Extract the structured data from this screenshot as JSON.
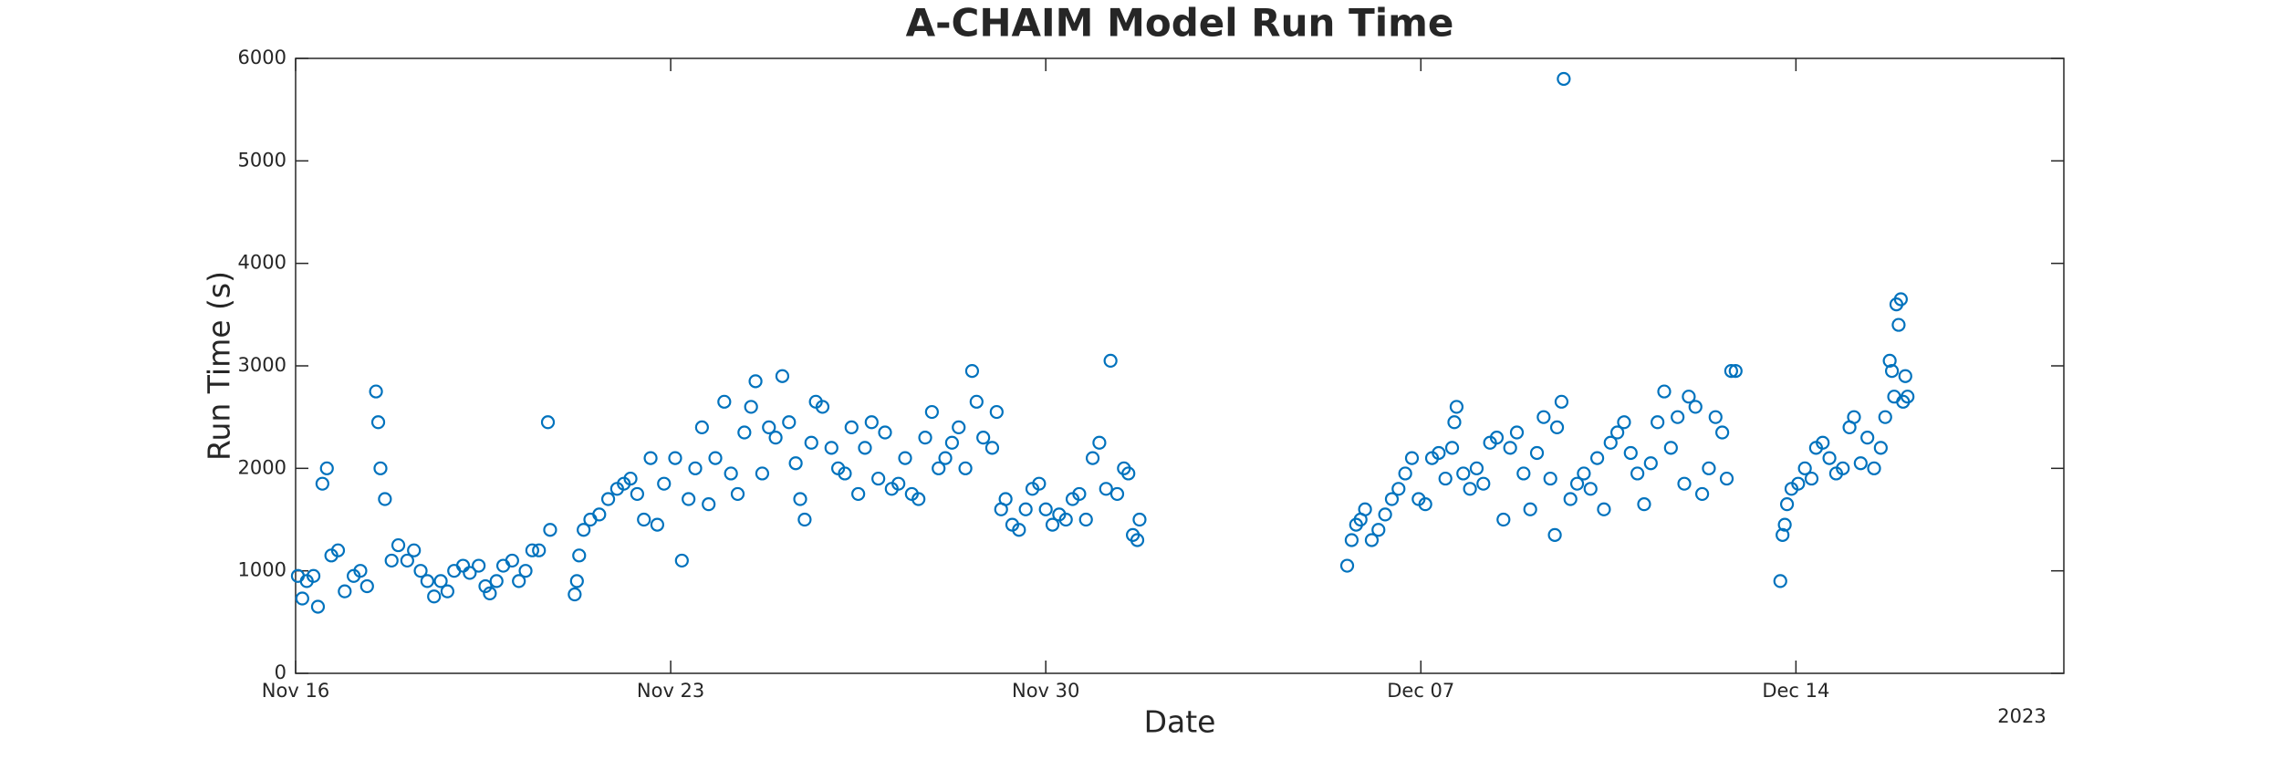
{
  "chart_data": {
    "type": "scatter",
    "title": "A-CHAIM Model Run Time",
    "xlabel": "Date",
    "ylabel": "Run Time (s)",
    "year_label": "2023",
    "color": "#0072bd",
    "xlim": [
      "2023-11-16",
      "2023-12-19"
    ],
    "xticks": [
      {
        "value": "2023-11-16",
        "label": "Nov 16"
      },
      {
        "value": "2023-11-23",
        "label": "Nov 23"
      },
      {
        "value": "2023-11-30",
        "label": "Nov 30"
      },
      {
        "value": "2023-12-07",
        "label": "Dec 07"
      },
      {
        "value": "2023-12-14",
        "label": "Dec 14"
      }
    ],
    "ylim": [
      0,
      6000
    ],
    "yticks": [
      0,
      1000,
      2000,
      3000,
      4000,
      5000,
      6000
    ],
    "grid": false,
    "x": [
      "2023-11-16T01:00",
      "2023-11-16T03:00",
      "2023-11-16T05:00",
      "2023-11-16T08:00",
      "2023-11-16T10:00",
      "2023-11-16T12:00",
      "2023-11-16T14:00",
      "2023-11-16T16:00",
      "2023-11-16T19:00",
      "2023-11-16T22:00",
      "2023-11-17T02:00",
      "2023-11-17T05:00",
      "2023-11-17T08:00",
      "2023-11-17T12:00",
      "2023-11-17T13:00",
      "2023-11-17T14:00",
      "2023-11-17T16:00",
      "2023-11-17T19:00",
      "2023-11-17T22:00",
      "2023-11-18T02:00",
      "2023-11-18T05:00",
      "2023-11-18T08:00",
      "2023-11-18T11:00",
      "2023-11-18T14:00",
      "2023-11-18T17:00",
      "2023-11-18T20:00",
      "2023-11-18T23:00",
      "2023-11-19T03:00",
      "2023-11-19T06:00",
      "2023-11-19T10:00",
      "2023-11-19T13:00",
      "2023-11-19T15:00",
      "2023-11-19T18:00",
      "2023-11-19T21:00",
      "2023-11-20T01:00",
      "2023-11-20T04:00",
      "2023-11-20T07:00",
      "2023-11-20T10:00",
      "2023-11-20T13:00",
      "2023-11-20T17:00",
      "2023-11-20T18:00",
      "2023-11-21T05:00",
      "2023-11-21T06:00",
      "2023-11-21T07:00",
      "2023-11-21T09:00",
      "2023-11-21T12:00",
      "2023-11-21T16:00",
      "2023-11-21T20:00",
      "2023-11-22T00:00",
      "2023-11-22T03:00",
      "2023-11-22T06:00",
      "2023-11-22T09:00",
      "2023-11-22T12:00",
      "2023-11-22T15:00",
      "2023-11-22T18:00",
      "2023-11-22T21:00",
      "2023-11-23T02:00",
      "2023-11-23T05:00",
      "2023-11-23T08:00",
      "2023-11-23T11:00",
      "2023-11-23T14:00",
      "2023-11-23T17:00",
      "2023-11-23T20:00",
      "2023-11-24T00:00",
      "2023-11-24T03:00",
      "2023-11-24T06:00",
      "2023-11-24T09:00",
      "2023-11-24T12:00",
      "2023-11-24T14:00",
      "2023-11-24T17:00",
      "2023-11-24T20:00",
      "2023-11-24T23:00",
      "2023-11-25T02:00",
      "2023-11-25T05:00",
      "2023-11-25T08:00",
      "2023-11-25T10:00",
      "2023-11-25T12:00",
      "2023-11-25T15:00",
      "2023-11-25T17:00",
      "2023-11-25T20:00",
      "2023-11-26T00:00",
      "2023-11-26T03:00",
      "2023-11-26T06:00",
      "2023-11-26T09:00",
      "2023-11-26T12:00",
      "2023-11-26T15:00",
      "2023-11-26T18:00",
      "2023-11-26T21:00",
      "2023-11-27T00:00",
      "2023-11-27T03:00",
      "2023-11-27T06:00",
      "2023-11-27T09:00",
      "2023-11-27T12:00",
      "2023-11-27T15:00",
      "2023-11-27T18:00",
      "2023-11-27T21:00",
      "2023-11-28T00:00",
      "2023-11-28T03:00",
      "2023-11-28T06:00",
      "2023-11-28T09:00",
      "2023-11-28T12:00",
      "2023-11-28T15:00",
      "2023-11-28T17:00",
      "2023-11-28T20:00",
      "2023-11-29T00:00",
      "2023-11-29T02:00",
      "2023-11-29T04:00",
      "2023-11-29T06:00",
      "2023-11-29T09:00",
      "2023-11-29T12:00",
      "2023-11-29T15:00",
      "2023-11-29T18:00",
      "2023-11-29T21:00",
      "2023-11-30T00:00",
      "2023-11-30T03:00",
      "2023-11-30T06:00",
      "2023-11-30T09:00",
      "2023-11-30T12:00",
      "2023-11-30T15:00",
      "2023-11-30T18:00",
      "2023-11-30T21:00",
      "2023-12-01T00:00",
      "2023-12-01T03:00",
      "2023-12-01T05:00",
      "2023-12-01T08:00",
      "2023-12-01T11:00",
      "2023-12-01T13:00",
      "2023-12-01T15:00",
      "2023-12-01T17:00",
      "2023-12-01T18:00",
      "2023-12-05T15:00",
      "2023-12-05T17:00",
      "2023-12-05T19:00",
      "2023-12-05T21:00",
      "2023-12-05T23:00",
      "2023-12-06T02:00",
      "2023-12-06T05:00",
      "2023-12-06T08:00",
      "2023-12-06T11:00",
      "2023-12-06T14:00",
      "2023-12-06T17:00",
      "2023-12-06T20:00",
      "2023-12-06T23:00",
      "2023-12-07T02:00",
      "2023-12-07T05:00",
      "2023-12-07T08:00",
      "2023-12-07T11:00",
      "2023-12-07T14:00",
      "2023-12-07T15:00",
      "2023-12-07T16:00",
      "2023-12-07T19:00",
      "2023-12-07T22:00",
      "2023-12-08T01:00",
      "2023-12-08T04:00",
      "2023-12-08T07:00",
      "2023-12-08T10:00",
      "2023-12-08T13:00",
      "2023-12-08T16:00",
      "2023-12-08T19:00",
      "2023-12-08T22:00",
      "2023-12-09T01:00",
      "2023-12-09T04:00",
      "2023-12-09T07:00",
      "2023-12-09T10:00",
      "2023-12-09T12:00",
      "2023-12-09T13:00",
      "2023-12-09T15:00",
      "2023-12-09T16:00",
      "2023-12-09T19:00",
      "2023-12-09T22:00",
      "2023-12-10T01:00",
      "2023-12-10T04:00",
      "2023-12-10T07:00",
      "2023-12-10T10:00",
      "2023-12-10T13:00",
      "2023-12-10T16:00",
      "2023-12-10T19:00",
      "2023-12-10T22:00",
      "2023-12-11T01:00",
      "2023-12-11T04:00",
      "2023-12-11T07:00",
      "2023-12-11T10:00",
      "2023-12-11T13:00",
      "2023-12-11T16:00",
      "2023-12-11T19:00",
      "2023-12-11T22:00",
      "2023-12-12T00:00",
      "2023-12-12T03:00",
      "2023-12-12T06:00",
      "2023-12-12T09:00",
      "2023-12-12T12:00",
      "2023-12-12T15:00",
      "2023-12-12T17:00",
      "2023-12-12T19:00",
      "2023-12-12T21:00",
      "2023-12-13T17:00",
      "2023-12-13T18:00",
      "2023-12-13T19:00",
      "2023-12-13T20:00",
      "2023-12-13T22:00",
      "2023-12-14T01:00",
      "2023-12-14T04:00",
      "2023-12-14T07:00",
      "2023-12-14T09:00",
      "2023-12-14T12:00",
      "2023-12-14T15:00",
      "2023-12-14T18:00",
      "2023-12-14T21:00",
      "2023-12-15T00:00",
      "2023-12-15T02:00",
      "2023-12-15T05:00",
      "2023-12-15T08:00",
      "2023-12-15T11:00",
      "2023-12-15T14:00",
      "2023-12-15T16:00",
      "2023-12-15T18:00",
      "2023-12-15T19:00",
      "2023-12-15T20:00",
      "2023-12-15T21:00",
      "2023-12-15T22:00",
      "2023-12-15T23:00",
      "2023-12-16T00:00",
      "2023-12-16T01:00",
      "2023-12-16T02:00"
    ],
    "values": [
      950,
      730,
      900,
      950,
      650,
      1850,
      2000,
      1150,
      1200,
      800,
      950,
      1000,
      850,
      2750,
      2450,
      2000,
      1700,
      1100,
      1250,
      1100,
      1200,
      1000,
      900,
      750,
      900,
      800,
      1000,
      1050,
      980,
      1050,
      850,
      780,
      900,
      1050,
      1100,
      900,
      1000,
      1200,
      1200,
      2450,
      1400,
      770,
      900,
      1150,
      1400,
      1500,
      1550,
      1700,
      1800,
      1850,
      1900,
      1750,
      1500,
      2100,
      1450,
      1850,
      2100,
      1100,
      1700,
      2000,
      2400,
      1650,
      2100,
      2650,
      1950,
      1750,
      2350,
      2600,
      2850,
      1950,
      2400,
      2300,
      2900,
      2450,
      2050,
      1700,
      1500,
      2250,
      2650,
      2600,
      2200,
      2000,
      1950,
      2400,
      1750,
      2200,
      2450,
      1900,
      2350,
      1800,
      1850,
      2100,
      1750,
      1700,
      2300,
      2550,
      2000,
      2100,
      2250,
      2400,
      2000,
      2950,
      2650,
      2300,
      2200,
      2550,
      1600,
      1700,
      1450,
      1400,
      1600,
      1800,
      1850,
      1600,
      1450,
      1550,
      1500,
      1700,
      1750,
      1500,
      2100,
      2250,
      1800,
      3050,
      1750,
      2000,
      1950,
      1350,
      1300,
      1500,
      1050,
      1300,
      1450,
      1500,
      1600,
      1300,
      1400,
      1550,
      1700,
      1800,
      1950,
      2100,
      1700,
      1650,
      2100,
      2150,
      1900,
      2200,
      2450,
      2600,
      1950,
      1800,
      2000,
      1850,
      2250,
      2300,
      1500,
      2200,
      2350,
      1950,
      1600,
      2150,
      2500,
      1900,
      1350,
      2400,
      2650,
      5800,
      1700,
      1850,
      1950,
      1800,
      2100,
      1600,
      2250,
      2350,
      2450,
      2150,
      1950,
      1650,
      2050,
      2450,
      2750,
      2200,
      2500,
      1850,
      2700,
      2600,
      1750,
      2000,
      2500,
      2350,
      1900,
      2950,
      2950,
      900,
      1350,
      1450,
      1650,
      1800,
      1850,
      2000,
      1900,
      2200,
      2250,
      2100,
      1950,
      2000,
      2400,
      2500,
      2050,
      2300,
      2000,
      2200,
      2500,
      3050,
      2950,
      2700,
      3600,
      3400,
      3650,
      2650,
      2900,
      2700
    ]
  }
}
